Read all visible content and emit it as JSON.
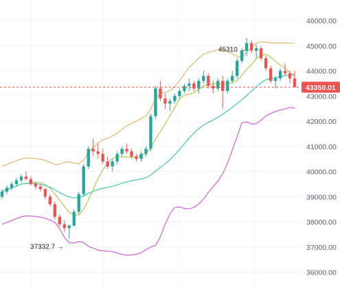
{
  "chart_data": {
    "type": "candlestick",
    "ylim": [
      35500,
      46500
    ],
    "y_ticks": [
      "46000.00",
      "45000.00",
      "44000.00",
      "43000.00",
      "42000.00",
      "41000.00",
      "40000.00",
      "39000.00",
      "38000.00",
      "37000.00",
      "36000.00"
    ],
    "y_tick_values": [
      46000,
      45000,
      44000,
      43000,
      42000,
      41000,
      40000,
      39000,
      38000,
      37000,
      36000
    ],
    "current_price": 43350.01,
    "current_price_label": "43350.01",
    "annotations": [
      {
        "text": "45310 →",
        "value": 45310
      },
      {
        "text": "37332.7 →",
        "value": 37332.7
      }
    ],
    "candles": [
      [
        39000,
        39300,
        38900,
        39200
      ],
      [
        39200,
        39450,
        39100,
        39350
      ],
      [
        39350,
        39600,
        39250,
        39500
      ],
      [
        39500,
        39750,
        39400,
        39650
      ],
      [
        39650,
        39900,
        39550,
        39800
      ],
      [
        39800,
        40000,
        39650,
        39700
      ],
      [
        39700,
        39800,
        39450,
        39500
      ],
      [
        39500,
        39600,
        39300,
        39400
      ],
      [
        39400,
        39500,
        39200,
        39300
      ],
      [
        39300,
        39350,
        38900,
        39000
      ],
      [
        39000,
        39100,
        38600,
        38700
      ],
      [
        38700,
        38800,
        38100,
        38200
      ],
      [
        38200,
        38300,
        37800,
        37900
      ],
      [
        37900,
        38050,
        37600,
        37750
      ],
      [
        37750,
        37900,
        37333,
        37850
      ],
      [
        37850,
        38500,
        37800,
        38400
      ],
      [
        38400,
        39200,
        38300,
        39100
      ],
      [
        39100,
        40300,
        39000,
        40200
      ],
      [
        40200,
        41000,
        40100,
        40900
      ],
      [
        40900,
        41300,
        40600,
        40800
      ],
      [
        40800,
        41100,
        40500,
        40700
      ],
      [
        40700,
        40900,
        40300,
        40400
      ],
      [
        40400,
        40600,
        40100,
        40200
      ],
      [
        40200,
        40500,
        40000,
        40400
      ],
      [
        40400,
        40800,
        40300,
        40700
      ],
      [
        40700,
        41000,
        40600,
        40900
      ],
      [
        40900,
        41100,
        40700,
        40800
      ],
      [
        40800,
        40900,
        40500,
        40600
      ],
      [
        40600,
        40700,
        40400,
        40500
      ],
      [
        40500,
        40800,
        40400,
        40700
      ],
      [
        40700,
        41000,
        40600,
        40900
      ],
      [
        40900,
        42300,
        40800,
        42200
      ],
      [
        42200,
        43400,
        42100,
        43300
      ],
      [
        43300,
        43600,
        42800,
        42900
      ],
      [
        42900,
        43100,
        42500,
        42700
      ],
      [
        42700,
        42900,
        42400,
        42800
      ],
      [
        42800,
        43100,
        42700,
        43000
      ],
      [
        43000,
        43300,
        42900,
        43200
      ],
      [
        43200,
        43500,
        43100,
        43400
      ],
      [
        43400,
        43700,
        43200,
        43500
      ],
      [
        43500,
        43600,
        43200,
        43300
      ],
      [
        43300,
        43700,
        43100,
        43600
      ],
      [
        43600,
        44000,
        43500,
        43800
      ],
      [
        43800,
        43900,
        43300,
        43400
      ],
      [
        43400,
        43600,
        43100,
        43300
      ],
      [
        43300,
        43700,
        43200,
        43600
      ],
      [
        43600,
        43800,
        42500,
        43200
      ],
      [
        43200,
        43700,
        43100,
        43600
      ],
      [
        43600,
        44000,
        43500,
        43800
      ],
      [
        43800,
        44500,
        43700,
        44400
      ],
      [
        44400,
        44900,
        44300,
        44800
      ],
      [
        44800,
        45310,
        44600,
        45100
      ],
      [
        45100,
        45200,
        44700,
        44800
      ],
      [
        44800,
        45050,
        44500,
        44900
      ],
      [
        44900,
        45000,
        44400,
        44500
      ],
      [
        44500,
        44600,
        44000,
        44100
      ],
      [
        44100,
        44200,
        43500,
        43600
      ],
      [
        43600,
        43800,
        43300,
        43700
      ],
      [
        43700,
        44100,
        43600,
        44000
      ],
      [
        44000,
        44300,
        43800,
        43900
      ],
      [
        43900,
        44000,
        43500,
        43700
      ],
      [
        43700,
        44000,
        43400,
        43350
      ]
    ],
    "series": []
  }
}
